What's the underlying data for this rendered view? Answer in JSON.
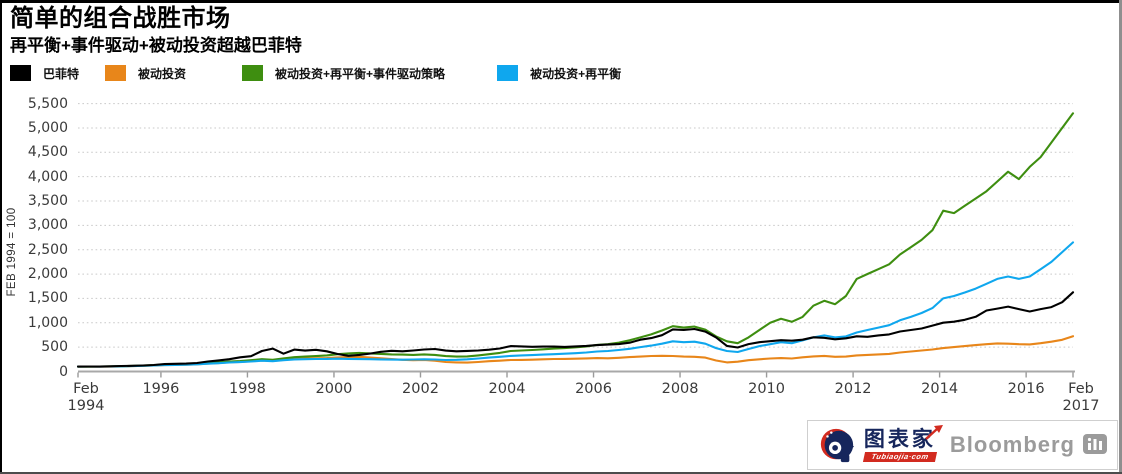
{
  "chart_data": {
    "type": "line",
    "title": "简单的组合战胜市场",
    "subtitle": "再平衡+事件驱动+被动投资超越巴菲特",
    "ylabel": "FEB 1994 = 100",
    "ylim": [
      0,
      5500
    ],
    "ytick_step": 500,
    "grid": true,
    "legend_position": "top-left",
    "grid_color": "#c9c9c9",
    "axis_color": "#a8a8a8",
    "tick_color": "#9a9a9a",
    "x_start": 1994.0833,
    "x_end": 2017.0833,
    "x_step": 0.25,
    "x_ticks": [
      1994.0833,
      1996,
      1998,
      2000,
      2002,
      2004,
      2006,
      2008,
      2010,
      2012,
      2014,
      2016,
      2017.0833
    ],
    "x_tick_labels": [
      [
        "Feb",
        "1994"
      ],
      [
        "1996"
      ],
      [
        "1998"
      ],
      [
        "2000"
      ],
      [
        "2002"
      ],
      [
        "2004"
      ],
      [
        "2006"
      ],
      [
        "2008"
      ],
      [
        "2010"
      ],
      [
        "2012"
      ],
      [
        "2014"
      ],
      [
        "2016"
      ],
      [
        "Feb",
        "2017"
      ]
    ],
    "series": [
      {
        "name": "巴菲特",
        "color": "#000000",
        "values": [
          100,
          102,
          101,
          106,
          112,
          118,
          124,
          134,
          152,
          158,
          162,
          174,
          205,
          228,
          252,
          292,
          315,
          420,
          470,
          365,
          450,
          430,
          445,
          415,
          360,
          322,
          340,
          368,
          405,
          425,
          415,
          432,
          452,
          462,
          430,
          415,
          422,
          432,
          448,
          472,
          522,
          515,
          508,
          512,
          512,
          506,
          516,
          526,
          542,
          552,
          562,
          592,
          652,
          685,
          745,
          865,
          855,
          872,
          820,
          700,
          525,
          492,
          562,
          602,
          622,
          642,
          632,
          652,
          702,
          692,
          662,
          682,
          722,
          712,
          742,
          762,
          822,
          852,
          882,
          942,
          1002,
          1022,
          1062,
          1122,
          1252,
          1292,
          1332,
          1282,
          1232,
          1282,
          1322,
          1422,
          1625
        ]
      },
      {
        "name": "被动投资",
        "color": "#E8861A",
        "values": [
          100,
          99,
          101,
          100,
          104,
          110,
          117,
          124,
          132,
          136,
          139,
          148,
          162,
          172,
          190,
          196,
          211,
          228,
          215,
          241,
          259,
          267,
          271,
          278,
          289,
          296,
          301,
          286,
          271,
          256,
          241,
          231,
          236,
          221,
          196,
          186,
          182,
          196,
          211,
          221,
          236,
          239,
          242,
          251,
          256,
          259,
          263,
          269,
          276,
          271,
          281,
          296,
          306,
          318,
          322,
          318,
          306,
          301,
          286,
          226,
          186,
          201,
          231,
          251,
          266,
          276,
          266,
          291,
          311,
          321,
          301,
          306,
          331,
          341,
          351,
          361,
          391,
          411,
          431,
          451,
          481,
          501,
          521,
          541,
          561,
          576,
          571,
          561,
          556,
          581,
          611,
          651,
          725
        ]
      },
      {
        "name": "被动投资+再平衡+事件驱动策略",
        "color": "#3E8E10",
        "values": [
          100,
          101,
          102,
          105,
          109,
          115,
          122,
          130,
          141,
          146,
          151,
          161,
          176,
          189,
          206,
          216,
          231,
          253,
          241,
          269,
          293,
          306,
          316,
          331,
          356,
          371,
          381,
          371,
          361,
          351,
          346,
          341,
          351,
          341,
          316,
          306,
          311,
          331,
          356,
          381,
          421,
          431,
          441,
          456,
          471,
          481,
          496,
          516,
          546,
          561,
          591,
          641,
          701,
          761,
          841,
          931,
          901,
          921,
          861,
          721,
          621,
          581,
          701,
          851,
          1001,
          1081,
          1021,
          1121,
          1351,
          1451,
          1381,
          1551,
          1901,
          2001,
          2101,
          2201,
          2401,
          2551,
          2701,
          2901,
          3301,
          3251,
          3401,
          3551,
          3701,
          3901,
          4101,
          3951,
          4201,
          4401,
          4701,
          5001,
          5301
        ]
      },
      {
        "name": "被动投资+再平衡",
        "color": "#0FA7EE",
        "values": [
          100,
          100,
          101,
          103,
          106,
          111,
          117,
          123,
          132,
          136,
          139,
          147,
          160,
          170,
          184,
          192,
          205,
          221,
          212,
          233,
          248,
          252,
          256,
          258,
          262,
          258,
          255,
          252,
          248,
          245,
          242,
          246,
          251,
          246,
          236,
          241,
          251,
          266,
          286,
          301,
          321,
          331,
          336,
          346,
          356,
          366,
          376,
          391,
          411,
          421,
          441,
          466,
          501,
          531,
          571,
          621,
          601,
          611,
          571,
          481,
          421,
          401,
          461,
          521,
          561,
          601,
          581,
          641,
          701,
          741,
          701,
          721,
          801,
          851,
          901,
          951,
          1051,
          1121,
          1201,
          1301,
          1501,
          1551,
          1621,
          1701,
          1801,
          1901,
          1951,
          1901,
          1951,
          2101,
          2251,
          2451,
          2651
        ]
      }
    ]
  },
  "footer": {
    "brand_cn": "图表家",
    "brand_domain": "Tubiaojia·com",
    "bloomberg": "Bloomberg"
  }
}
